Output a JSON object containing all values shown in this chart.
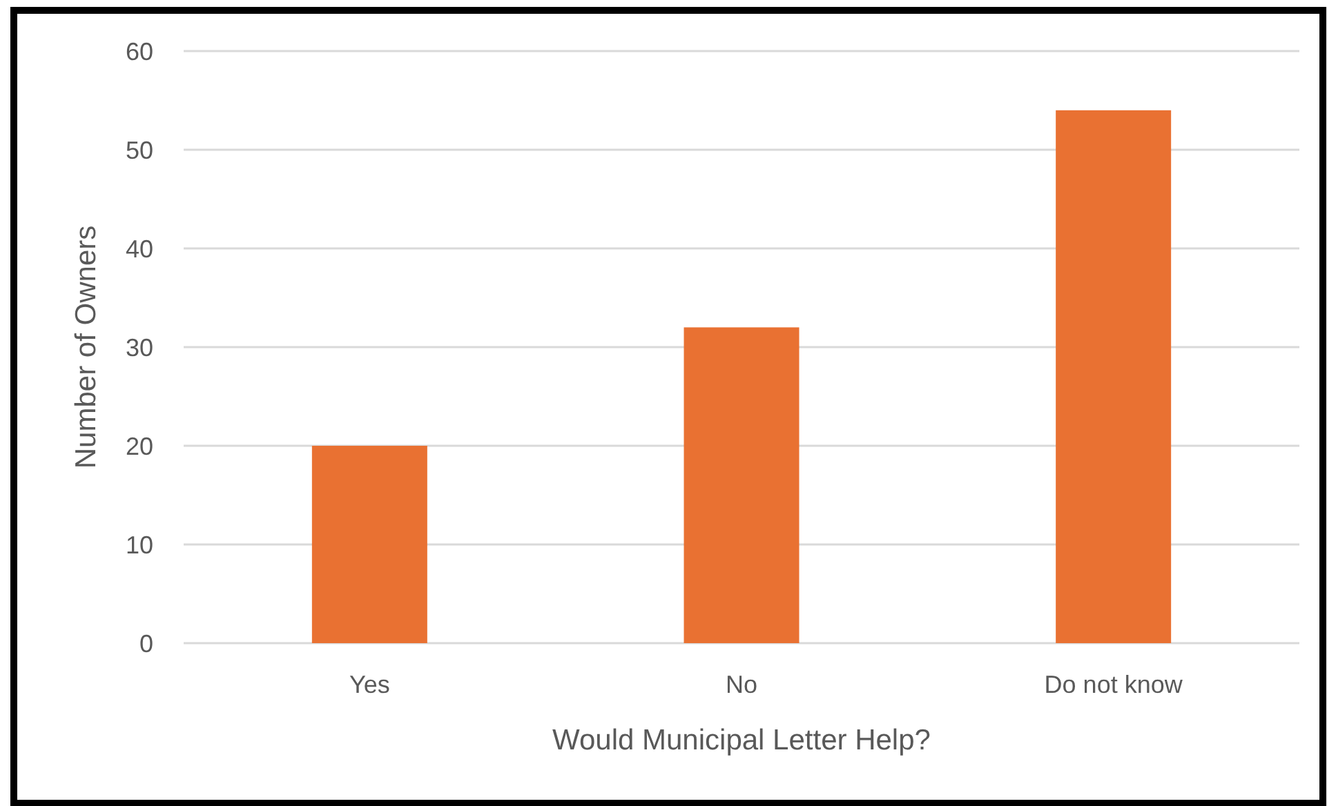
{
  "chart_data": {
    "type": "bar",
    "xlabel": "Would Municipal Letter Help?",
    "ylabel": "Number of Owners",
    "categories": [
      "Yes",
      "No",
      "Do not know"
    ],
    "values": [
      20,
      32,
      54
    ],
    "color": "#e97132",
    "ylim": [
      0,
      60
    ],
    "yticks": [
      0,
      10,
      20,
      30,
      40,
      50,
      60
    ],
    "grid": "y"
  }
}
